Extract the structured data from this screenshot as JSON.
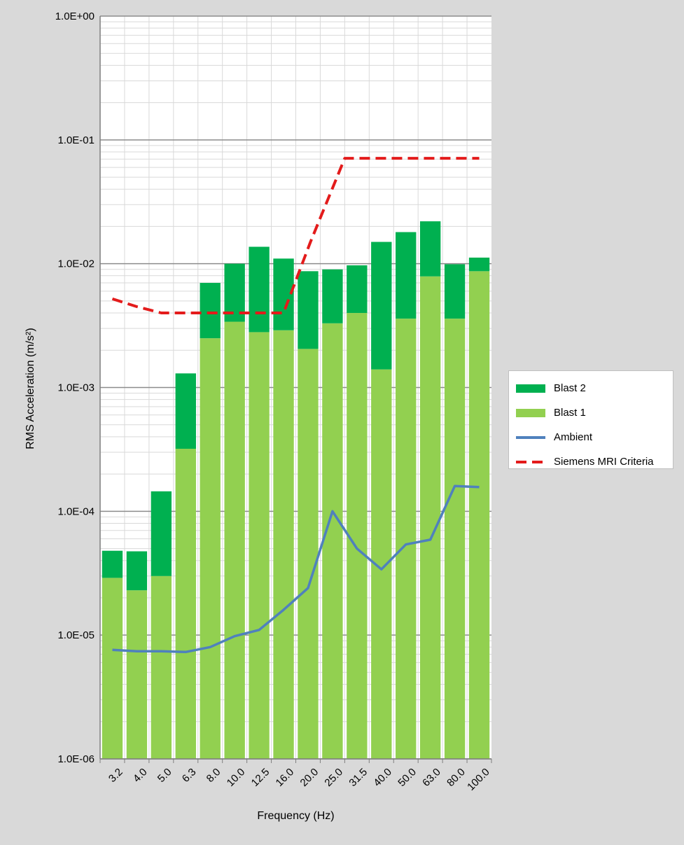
{
  "chart_data": {
    "type": "bar",
    "stacked": true,
    "yscale": "log",
    "categories": [
      "3.2",
      "4.0",
      "5.0",
      "6.3",
      "8.0",
      "10.0",
      "12.5",
      "16.0",
      "20.0",
      "25.0",
      "31.5",
      "40.0",
      "50.0",
      "63.0",
      "80.0",
      "100.0"
    ],
    "series": [
      {
        "name": "Blast 1",
        "kind": "bar",
        "color": "#92d050",
        "values": [
          2.9e-05,
          2.3e-05,
          3e-05,
          0.00032,
          0.0025,
          0.0034,
          0.0028,
          0.0029,
          0.00205,
          0.0033,
          0.004,
          0.0014,
          0.0036,
          0.0079,
          0.0036,
          0.0087
        ]
      },
      {
        "name": "Blast 2",
        "kind": "bar",
        "color": "#00b050",
        "top_values": [
          4.8e-05,
          4.75e-05,
          0.000145,
          0.0013,
          0.007,
          0.01,
          0.0137,
          0.011,
          0.0087,
          0.009,
          0.0097,
          0.015,
          0.018,
          0.022,
          0.0099,
          0.0112
        ]
      },
      {
        "name": "Ambient",
        "kind": "line",
        "color": "#4f81bd",
        "values": [
          7.6e-06,
          7.4e-06,
          7.4e-06,
          7.3e-06,
          8e-06,
          9.8e-06,
          1.1e-05,
          1.6e-05,
          2.4e-05,
          0.0001,
          5e-05,
          3.4e-05,
          5.4e-05,
          5.9e-05,
          0.00016,
          0.000157
        ]
      },
      {
        "name": "Siemens MRI Criteria",
        "kind": "line",
        "dashed": true,
        "color": "#e31b1b",
        "values": [
          0.0052,
          0.0045,
          0.004,
          0.004,
          0.004,
          0.004,
          0.004,
          0.004,
          0.015,
          0.071,
          0.071,
          0.071,
          0.071,
          0.071,
          0.071,
          0.071
        ],
        "offset": [
          0,
          0,
          0,
          0,
          0,
          0,
          0,
          0,
          0.1,
          0.5,
          0,
          0,
          0,
          0,
          0,
          0
        ]
      }
    ],
    "ylim": [
      1e-06,
      1
    ],
    "yticks": [
      "1.0E-06",
      "1.0E-05",
      "1.0E-04",
      "1.0E-03",
      "1.0E-02",
      "1.0E-01",
      "1.0E+00"
    ],
    "xlabel": "Frequency (Hz)",
    "ylabel": "RMS Acceleration (m/s²)",
    "grid": true,
    "legend_position": "right"
  },
  "legend": {
    "items": [
      {
        "label": "Blast 2"
      },
      {
        "label": "Blast 1"
      },
      {
        "label": "Ambient"
      },
      {
        "label": "Siemens MRI Criteria"
      }
    ]
  }
}
